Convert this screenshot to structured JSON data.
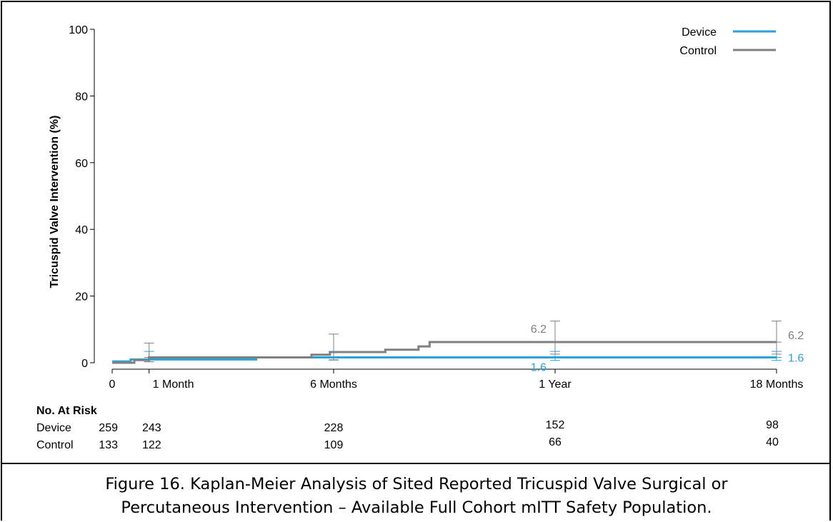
{
  "chart_data": {
    "type": "line",
    "subtype": "kaplan-meier-step",
    "ylabel": "Tricuspid Valve Intervention  (%)",
    "xlabel": "",
    "ylim": [
      0,
      100
    ],
    "y_ticks": [
      0,
      20,
      40,
      60,
      80,
      100
    ],
    "xlim_months": [
      0,
      18
    ],
    "x_ticks": [
      {
        "month": 0,
        "label": "0"
      },
      {
        "month": 1,
        "label": "1 Month"
      },
      {
        "month": 6,
        "label": "6 Months"
      },
      {
        "month": 12,
        "label": "1 Year"
      },
      {
        "month": 18,
        "label": "18 Months"
      }
    ],
    "grid": false,
    "legend_position": "top-right",
    "series": [
      {
        "name": "Device",
        "color": "#29a3dc",
        "points": [
          [
            0,
            0.4
          ],
          [
            0.5,
            1.0
          ],
          [
            3.9,
            1.6
          ],
          [
            18,
            1.6
          ]
        ],
        "ci": [
          {
            "month": 1,
            "lower": 0.3,
            "upper": 3.4,
            "est": 1.0
          },
          {
            "month": 6,
            "lower": 0.8,
            "upper": 3.3,
            "est": 1.6
          },
          {
            "month": 12,
            "lower": 0.7,
            "upper": 3.4,
            "est": 1.6
          },
          {
            "month": 18,
            "lower": 0.7,
            "upper": 3.4,
            "est": 1.6
          }
        ],
        "end_label": "1.6",
        "year_label": "1.6"
      },
      {
        "name": "Control",
        "color": "#808080",
        "points": [
          [
            0,
            0.0
          ],
          [
            0.6,
            0.8
          ],
          [
            1.0,
            1.6
          ],
          [
            5.4,
            2.4
          ],
          [
            5.9,
            3.2
          ],
          [
            7.4,
            3.9
          ],
          [
            8.3,
            4.9
          ],
          [
            8.6,
            6.2
          ],
          [
            18,
            6.2
          ]
        ],
        "ci": [
          {
            "month": 1,
            "lower": 0.3,
            "upper": 5.9,
            "est": 1.6
          },
          {
            "month": 6,
            "lower": 0.9,
            "upper": 8.6,
            "est": 3.2
          },
          {
            "month": 12,
            "lower": 2.6,
            "upper": 12.5,
            "est": 6.2
          },
          {
            "month": 18,
            "lower": 2.6,
            "upper": 12.5,
            "est": 6.2
          }
        ],
        "end_label": "6.2",
        "year_label": "6.2"
      }
    ],
    "at_risk": {
      "title": "No. At Risk",
      "groups": [
        {
          "name": "Device",
          "counts": [
            {
              "month": 0,
              "value": "259"
            },
            {
              "month": 1,
              "value": "243"
            },
            {
              "month": 6,
              "value": "228"
            },
            {
              "month": 12,
              "value": "152"
            },
            {
              "month": 18,
              "value": "98"
            }
          ]
        },
        {
          "name": "Control",
          "counts": [
            {
              "month": 0,
              "value": "133"
            },
            {
              "month": 1,
              "value": "122"
            },
            {
              "month": 6,
              "value": "109"
            },
            {
              "month": 12,
              "value": "66"
            },
            {
              "month": 18,
              "value": "40"
            }
          ]
        }
      ]
    }
  },
  "caption": {
    "line1": "Figure 16. Kaplan-Meier Analysis of Sited Reported Tricuspid Valve Surgical or",
    "line2": "Percutaneous Intervention – Available Full Cohort mITT Safety Population."
  }
}
